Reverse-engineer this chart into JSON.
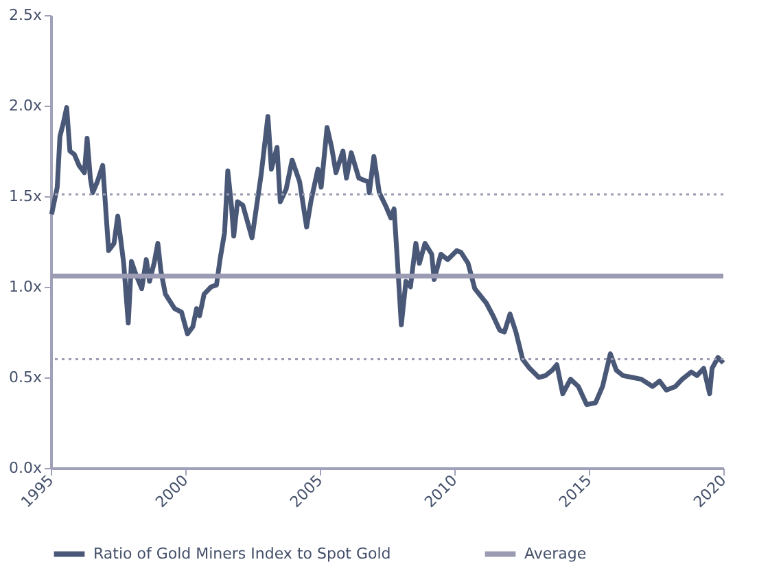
{
  "chart_data": {
    "type": "line",
    "xlim": [
      1995,
      2020
    ],
    "xticks": [
      1995,
      2000,
      2005,
      2010,
      2015,
      2020
    ],
    "ylim": [
      0,
      2.5
    ],
    "yticks": [
      {
        "value": 0,
        "label": "0.0x"
      },
      {
        "value": 0.5,
        "label": "0.5x"
      },
      {
        "value": 1,
        "label": "1.0x"
      },
      {
        "value": 1.5,
        "label": "1.5x"
      },
      {
        "value": 2,
        "label": "2.0x"
      },
      {
        "value": 2.5,
        "label": "2.5x"
      }
    ],
    "grid": false,
    "legend": "bottom",
    "line_style": "solid",
    "marker": "none",
    "series": [
      {
        "name": "Ratio of Gold Miners Index to Spot Gold",
        "color": "#4a5878",
        "x": [
          1995.03,
          1995.24,
          1995.34,
          1995.46,
          1995.59,
          1995.71,
          1995.88,
          1996.05,
          1996.25,
          1996.35,
          1996.47,
          1996.56,
          1996.73,
          1996.93,
          1997.15,
          1997.35,
          1997.49,
          1997.71,
          1997.88,
          1998.0,
          1998.16,
          1998.38,
          1998.55,
          1998.67,
          1998.84,
          1998.98,
          1999.09,
          1999.26,
          1999.6,
          1999.86,
          2000.08,
          2000.28,
          2000.42,
          2000.53,
          2000.7,
          2000.96,
          2001.16,
          2001.29,
          2001.46,
          2001.58,
          2001.72,
          2001.8,
          2001.94,
          2002.14,
          2002.48,
          2002.82,
          2003.07,
          2003.2,
          2003.41,
          2003.53,
          2003.75,
          2003.97,
          2004.25,
          2004.51,
          2004.68,
          2004.93,
          2005.05,
          2005.27,
          2005.44,
          2005.6,
          2005.86,
          2005.99,
          2006.17,
          2006.45,
          2006.79,
          2006.84,
          2007.01,
          2007.21,
          2007.47,
          2007.64,
          2007.76,
          2007.89,
          2008.03,
          2008.2,
          2008.37,
          2008.45,
          2008.57,
          2008.7,
          2008.91,
          2009.16,
          2009.25,
          2009.5,
          2009.75,
          2010.09,
          2010.25,
          2010.51,
          2010.76,
          2011.19,
          2011.44,
          2011.69,
          2011.86,
          2012.07,
          2012.29,
          2012.54,
          2012.8,
          2013.14,
          2013.39,
          2013.64,
          2013.81,
          2014.03,
          2014.32,
          2014.61,
          2014.92,
          2015.25,
          2015.51,
          2015.8,
          2016.02,
          2016.27,
          2016.61,
          2016.95,
          2017.37,
          2017.63,
          2017.88,
          2018.22,
          2018.47,
          2018.81,
          2019.02,
          2019.27,
          2019.49,
          2019.58,
          2019.8,
          2020.0
        ],
        "values": [
          1.4,
          1.55,
          1.83,
          1.9,
          1.99,
          1.75,
          1.73,
          1.67,
          1.63,
          1.82,
          1.6,
          1.52,
          1.58,
          1.67,
          1.2,
          1.24,
          1.39,
          1.13,
          0.8,
          1.14,
          1.07,
          0.99,
          1.15,
          1.03,
          1.13,
          1.24,
          1.09,
          0.96,
          0.88,
          0.86,
          0.74,
          0.78,
          0.88,
          0.84,
          0.96,
          1.0,
          1.01,
          1.15,
          1.3,
          1.64,
          1.44,
          1.28,
          1.47,
          1.45,
          1.27,
          1.62,
          1.94,
          1.65,
          1.77,
          1.47,
          1.54,
          1.7,
          1.58,
          1.33,
          1.48,
          1.65,
          1.55,
          1.88,
          1.77,
          1.63,
          1.75,
          1.6,
          1.74,
          1.6,
          1.58,
          1.52,
          1.72,
          1.52,
          1.44,
          1.38,
          1.43,
          1.13,
          0.79,
          1.03,
          1.0,
          1.1,
          1.24,
          1.13,
          1.24,
          1.18,
          1.04,
          1.18,
          1.15,
          1.2,
          1.19,
          1.13,
          0.99,
          0.91,
          0.84,
          0.76,
          0.75,
          0.85,
          0.75,
          0.6,
          0.55,
          0.5,
          0.51,
          0.54,
          0.57,
          0.41,
          0.49,
          0.45,
          0.35,
          0.36,
          0.45,
          0.63,
          0.54,
          0.51,
          0.5,
          0.49,
          0.45,
          0.48,
          0.43,
          0.45,
          0.49,
          0.53,
          0.51,
          0.55,
          0.41,
          0.55,
          0.61,
          0.58
        ]
      },
      {
        "name": "Average",
        "color": "#9b9cb3",
        "x": [
          1995,
          2020
        ],
        "values": [
          1.06,
          1.06
        ]
      }
    ],
    "ref_lines": [
      {
        "axis": "y",
        "value": 1.51,
        "color": "#9b9cb3",
        "line_style": "dotted"
      },
      {
        "axis": "y",
        "value": 0.6,
        "color": "#9b9cb3",
        "line_style": "dotted"
      }
    ]
  }
}
